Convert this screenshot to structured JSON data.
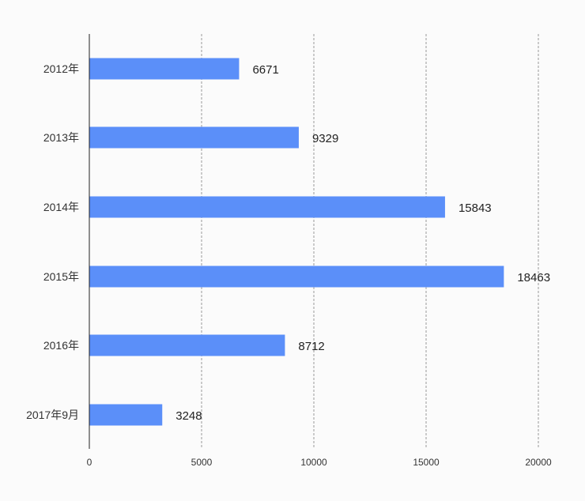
{
  "chart_data": {
    "type": "bar",
    "orientation": "horizontal",
    "title": "",
    "xlabel": "",
    "ylabel": "",
    "categories": [
      "2012年",
      "2013年",
      "2014年",
      "2015年",
      "2016年",
      "2017年9月"
    ],
    "values": [
      6671,
      9329,
      15843,
      18463,
      8712,
      3248
    ],
    "xlim": [
      0,
      20000
    ],
    "x_ticks": [
      0,
      5000,
      10000,
      15000,
      20000
    ],
    "x_tick_labels": [
      "0",
      "5000",
      "10000",
      "15000",
      "20000"
    ],
    "grid": "vertical dashed",
    "legend": "none",
    "bar_color": "#5b8ff9"
  }
}
